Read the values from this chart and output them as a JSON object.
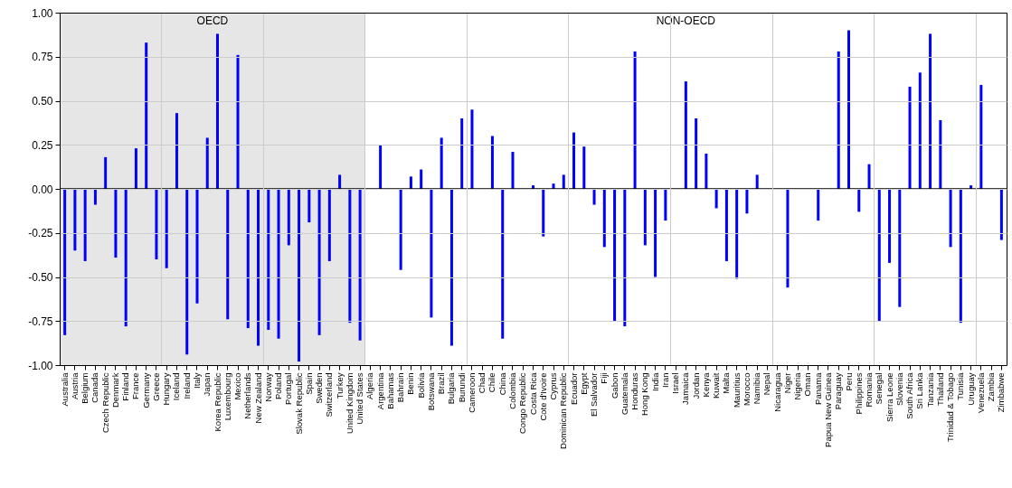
{
  "chart_data": {
    "type": "bar",
    "categories": [
      "Australia",
      "Austria",
      "Belgium",
      "Canada",
      "Czech Republic",
      "Denmark",
      "Finland",
      "France",
      "Germany",
      "Greece",
      "Hungary",
      "Iceland",
      "Ireland",
      "Italy",
      "Japan",
      "Korea Republic",
      "Luxembourg",
      "Mexico",
      "Netherlands",
      "New Zealand",
      "Norway",
      "Poland",
      "Portugal",
      "Slovak Republic",
      "Spain",
      "Sweden",
      "Switzerland",
      "Turkey",
      "United Kingdom",
      "United States",
      "Algeria",
      "Argentina",
      "Bahamas",
      "Bahrain",
      "Benin",
      "Bolivia",
      "Botswana",
      "Brazil",
      "Bulgaria",
      "Burundi",
      "Cameroon",
      "Chad",
      "Chile",
      "China",
      "Colombia",
      "Congo Republic",
      "Costa Rica",
      "Cote d'Ivoire",
      "Cyprus",
      "Dominican Republic",
      "Ecuador",
      "Egypt",
      "El Salvador",
      "Fiji",
      "Gabon",
      "Guatemala",
      "Honduras",
      "Hong Kong",
      "India",
      "Iran",
      "Israel",
      "Jamaica",
      "Jordan",
      "Kenya",
      "Kuwait",
      "Malta",
      "Mauritius",
      "Morocco",
      "Namibia",
      "Nepal",
      "Nicaragua",
      "Niger",
      "Nigeria",
      "Oman",
      "Panama",
      "Papua New Guinea",
      "Paraguay",
      "Peru",
      "Philippines",
      "Romania",
      "Senegal",
      "Sierra Leone",
      "Slovenia",
      "South Africa",
      "Sri Lanka",
      "Tanzania",
      "Thailand",
      "Trinidad & Tobago",
      "Tunisia",
      "Uruguay",
      "Venezuela",
      "Zambia",
      "Zimbabwe"
    ],
    "values": [
      -0.83,
      -0.35,
      -0.41,
      -0.09,
      0.18,
      -0.39,
      -0.78,
      0.23,
      0.83,
      -0.4,
      -0.45,
      0.43,
      -0.94,
      -0.65,
      0.29,
      0.88,
      -0.74,
      0.76,
      -0.79,
      -0.89,
      -0.8,
      -0.85,
      -0.32,
      -0.98,
      -0.19,
      -0.83,
      -0.41,
      0.08,
      -0.76,
      -0.86,
      null,
      0.25,
      null,
      -0.46,
      0.07,
      0.11,
      -0.73,
      0.29,
      -0.89,
      0.4,
      0.45,
      null,
      0.3,
      -0.85,
      0.21,
      null,
      0.02,
      -0.27,
      0.03,
      0.08,
      0.32,
      0.24,
      -0.09,
      -0.33,
      -0.75,
      -0.78,
      0.78,
      -0.32,
      -0.5,
      -0.18,
      null,
      0.61,
      0.4,
      0.2,
      -0.11,
      -0.41,
      -0.51,
      -0.14,
      0.08,
      null,
      null,
      -0.56,
      null,
      null,
      -0.18,
      null,
      0.78,
      0.9,
      -0.13,
      0.14,
      -0.75,
      -0.42,
      -0.67,
      0.58,
      0.66,
      0.88,
      0.39,
      -0.33,
      -0.76,
      0.02,
      0.59,
      null,
      -0.29
    ],
    "color": "#0000ff",
    "ylim": [
      -1,
      1
    ],
    "yticks": [
      {
        "value": -1,
        "label": "-1.00"
      },
      -0.75,
      {
        "value": -0.5,
        "label": "-0.50"
      },
      -0.25,
      {
        "value": 0,
        "label": "0.00"
      },
      0.25,
      {
        "value": 0.5,
        "label": "0.50"
      },
      0.75,
      {
        "value": 1,
        "label": "1.00"
      }
    ],
    "grid": true,
    "ref_lines": [
      {
        "axis": "y",
        "value": 0,
        "color": "#000000"
      }
    ],
    "bands": [
      {
        "axis": "x",
        "from": "Australia",
        "to": "United States",
        "label": "OECD",
        "color": "#e6e6e6"
      }
    ],
    "annotations": [
      "NON-OECD"
    ]
  }
}
